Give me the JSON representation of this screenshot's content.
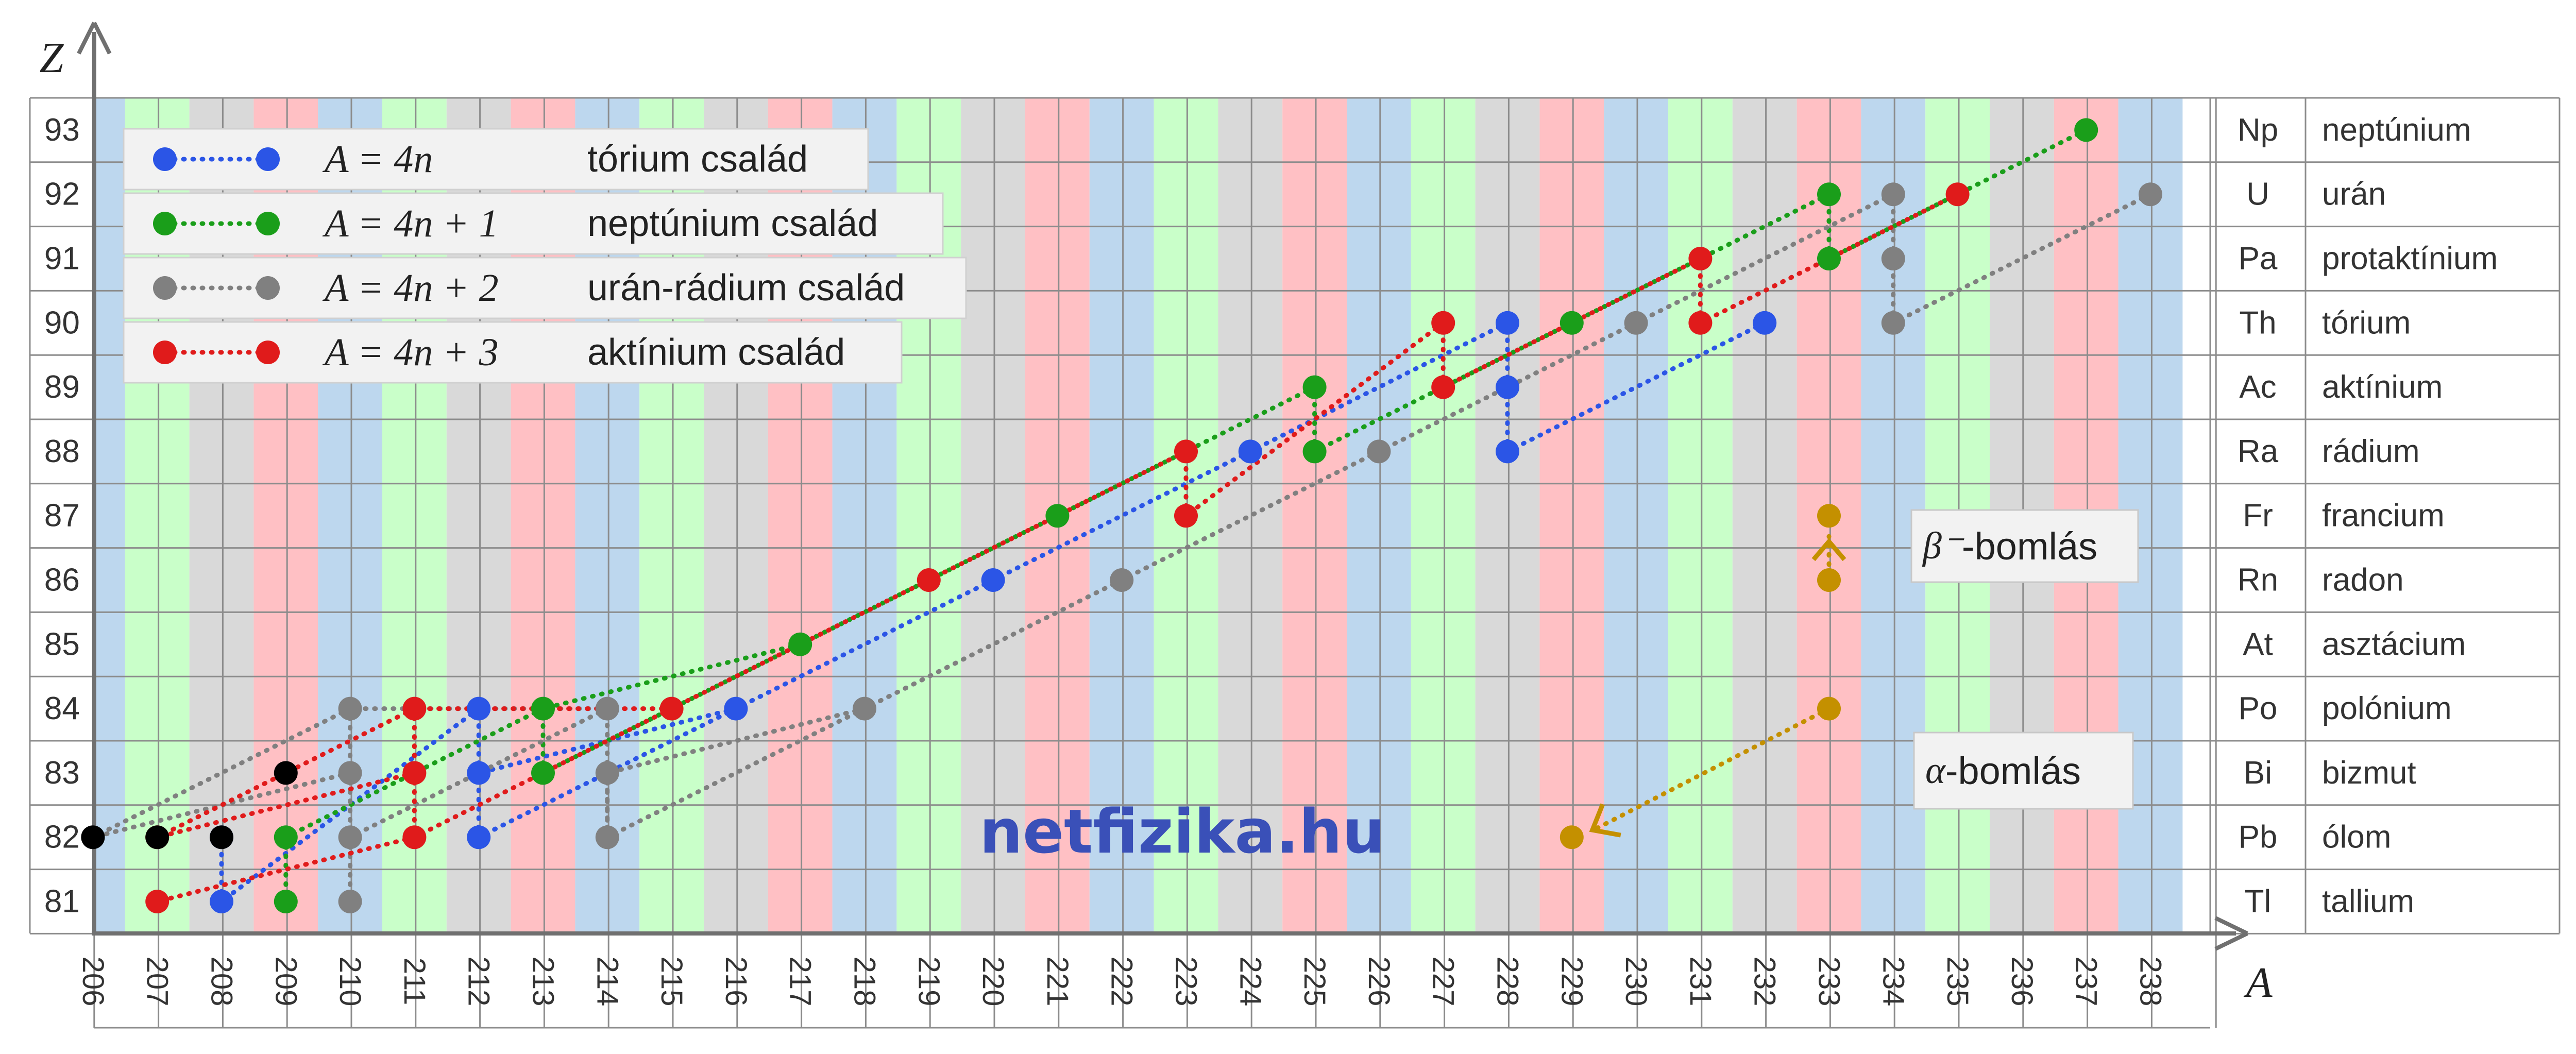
{
  "chart_data": {
    "type": "scatter",
    "title": "",
    "xlabel": "A",
    "ylabel": "Z",
    "xlim": [
      206,
      238
    ],
    "ylim": [
      81,
      93
    ],
    "x_ticks": [
      206,
      207,
      208,
      209,
      210,
      211,
      212,
      213,
      214,
      215,
      216,
      217,
      218,
      219,
      220,
      221,
      222,
      223,
      224,
      225,
      226,
      227,
      228,
      229,
      230,
      231,
      232,
      233,
      234,
      235,
      236,
      237,
      238
    ],
    "column_colors": {
      "0": "#d9d9d9",
      "1": "#ffc0c4",
      "2": "#bdd7ee",
      "3": "#c9ffc9"
    },
    "elements": [
      {
        "z": 93,
        "symbol": "Np",
        "name": "neptúnium"
      },
      {
        "z": 92,
        "symbol": "U",
        "name": "urán"
      },
      {
        "z": 91,
        "symbol": "Pa",
        "name": "protaktínium"
      },
      {
        "z": 90,
        "symbol": "Th",
        "name": "tórium"
      },
      {
        "z": 89,
        "symbol": "Ac",
        "name": "aktínium"
      },
      {
        "z": 88,
        "symbol": "Ra",
        "name": "rádium"
      },
      {
        "z": 87,
        "symbol": "Fr",
        "name": "francium"
      },
      {
        "z": 86,
        "symbol": "Rn",
        "name": "radon"
      },
      {
        "z": 85,
        "symbol": "At",
        "name": "asztácium"
      },
      {
        "z": 84,
        "symbol": "Po",
        "name": "polónium"
      },
      {
        "z": 83,
        "symbol": "Bi",
        "name": "bizmut"
      },
      {
        "z": 82,
        "symbol": "Pb",
        "name": "ólom"
      },
      {
        "z": 81,
        "symbol": "Tl",
        "name": "tallium"
      }
    ],
    "series": [
      {
        "name": "tórium család",
        "formula": "A = 4n",
        "color": "#2b55e6",
        "points": [
          [
            232,
            90
          ],
          [
            228,
            88
          ],
          [
            228,
            89
          ],
          [
            228,
            90
          ],
          [
            224,
            88
          ],
          [
            220,
            86
          ],
          [
            216,
            84
          ],
          [
            212,
            82
          ],
          [
            212,
            83
          ],
          [
            212,
            84
          ],
          [
            208,
            81
          ],
          [
            208,
            82
          ]
        ],
        "links": [
          [
            0,
            1,
            "a"
          ],
          [
            1,
            2,
            "b"
          ],
          [
            2,
            3,
            "b"
          ],
          [
            3,
            4,
            "a"
          ],
          [
            4,
            5,
            "a"
          ],
          [
            5,
            6,
            "a"
          ],
          [
            6,
            7,
            "a"
          ],
          [
            7,
            8,
            "b"
          ],
          [
            8,
            9,
            "b"
          ],
          [
            9,
            10,
            "a"
          ],
          [
            10,
            11,
            "b"
          ],
          [
            6,
            8,
            "a"
          ]
        ]
      },
      {
        "name": "neptúnium család",
        "formula": "A = 4n + 1",
        "color": "#1a9e1a",
        "points": [
          [
            237,
            93
          ],
          [
            233,
            91
          ],
          [
            233,
            92
          ],
          [
            229,
            90
          ],
          [
            225,
            88
          ],
          [
            225,
            89
          ],
          [
            221,
            87
          ],
          [
            217,
            85
          ],
          [
            213,
            83
          ],
          [
            213,
            84
          ],
          [
            209,
            82
          ],
          [
            209,
            81
          ]
        ],
        "links": [
          [
            0,
            1,
            "a"
          ],
          [
            1,
            2,
            "b"
          ],
          [
            2,
            3,
            "a"
          ],
          [
            3,
            4,
            "a"
          ],
          [
            4,
            5,
            "b"
          ],
          [
            5,
            6,
            "a"
          ],
          [
            6,
            7,
            "a"
          ],
          [
            7,
            8,
            "a"
          ],
          [
            8,
            9,
            "b"
          ],
          [
            9,
            10,
            "a"
          ],
          [
            10,
            11,
            "b"
          ],
          [
            7,
            9,
            "a"
          ]
        ]
      },
      {
        "name": "urán-rádium család",
        "formula": "A = 4n + 2",
        "color": "#808080",
        "points": [
          [
            238,
            92
          ],
          [
            234,
            90
          ],
          [
            234,
            91
          ],
          [
            234,
            92
          ],
          [
            230,
            90
          ],
          [
            226,
            88
          ],
          [
            222,
            86
          ],
          [
            218,
            84
          ],
          [
            214,
            82
          ],
          [
            214,
            83
          ],
          [
            214,
            84
          ],
          [
            210,
            82
          ],
          [
            210,
            83
          ],
          [
            210,
            84
          ],
          [
            210,
            81
          ],
          [
            206,
            82
          ]
        ],
        "links": [
          [
            0,
            1,
            "a"
          ],
          [
            1,
            2,
            "b"
          ],
          [
            2,
            3,
            "b"
          ],
          [
            3,
            4,
            "a"
          ],
          [
            4,
            5,
            "a"
          ],
          [
            5,
            6,
            "a"
          ],
          [
            6,
            7,
            "a"
          ],
          [
            7,
            8,
            "a"
          ],
          [
            7,
            9,
            "a"
          ],
          [
            9,
            8,
            "b"
          ],
          [
            8,
            10,
            "b"
          ],
          [
            10,
            11,
            "a"
          ],
          [
            10,
            13,
            "a"
          ],
          [
            13,
            12,
            "b"
          ],
          [
            12,
            11,
            "b"
          ],
          [
            11,
            14,
            "b"
          ],
          [
            13,
            15,
            "a"
          ],
          [
            12,
            15,
            "a"
          ]
        ]
      },
      {
        "name": "aktínium család",
        "formula": "A = 4n + 3",
        "color": "#e01b1b",
        "points": [
          [
            235,
            92
          ],
          [
            231,
            90
          ],
          [
            231,
            91
          ],
          [
            227,
            89
          ],
          [
            227,
            90
          ],
          [
            223,
            87
          ],
          [
            223,
            88
          ],
          [
            219,
            86
          ],
          [
            215,
            84
          ],
          [
            211,
            82
          ],
          [
            211,
            83
          ],
          [
            211,
            84
          ],
          [
            207,
            81
          ],
          [
            207,
            82
          ]
        ],
        "links": [
          [
            0,
            1,
            "a"
          ],
          [
            1,
            2,
            "b"
          ],
          [
            2,
            3,
            "a"
          ],
          [
            3,
            4,
            "b"
          ],
          [
            4,
            5,
            "a"
          ],
          [
            5,
            6,
            "b"
          ],
          [
            6,
            7,
            "a"
          ],
          [
            7,
            8,
            "a"
          ],
          [
            8,
            9,
            "a"
          ],
          [
            8,
            11,
            "a"
          ],
          [
            11,
            10,
            "b"
          ],
          [
            10,
            9,
            "b"
          ],
          [
            9,
            12,
            "b"
          ],
          [
            11,
            13,
            "a"
          ],
          [
            10,
            13,
            "a"
          ]
        ]
      }
    ],
    "stable_endpoints": {
      "color": "#000000",
      "points": [
        [
          206,
          82
        ],
        [
          207,
          82
        ],
        [
          208,
          82
        ],
        [
          209,
          83
        ]
      ]
    },
    "example_decays": {
      "color": "#c49000",
      "beta": {
        "label": "β⁻-bomlás",
        "from": [
          233,
          86
        ],
        "to": [
          233,
          87
        ]
      },
      "alpha": {
        "label": "α-bomlás",
        "from": [
          233,
          84
        ],
        "to": [
          229,
          82
        ]
      }
    },
    "watermark": "netfizika.hu",
    "legend_placement": "top-left"
  }
}
